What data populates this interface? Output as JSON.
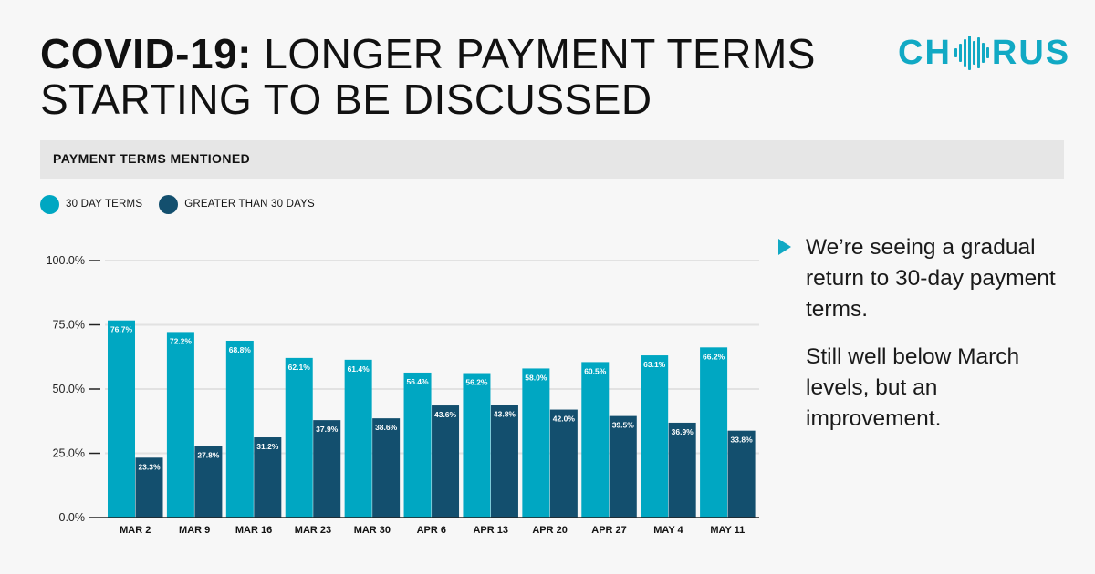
{
  "header": {
    "title_bold": "COVID-19:",
    "title_rest": " LONGER PAYMENT TERMS STARTING TO BE DISCUSSED"
  },
  "logo": {
    "text_left": "CH",
    "text_right": "RUS"
  },
  "section": {
    "label": "PAYMENT TERMS MENTIONED"
  },
  "legend": {
    "items": [
      {
        "label": "30 DAY TERMS",
        "color": "#00a7c2"
      },
      {
        "label": "GREATER THAN 30 DAYS",
        "color": "#134f6e"
      }
    ]
  },
  "notes": {
    "point_1": "We’re seeing a gradual return to 30-day payment terms.",
    "point_2": "Still well below March levels, but an improvement."
  },
  "chart_data": {
    "type": "bar",
    "title": "PAYMENT TERMS MENTIONED",
    "categories": [
      "MAR 2",
      "MAR 9",
      "MAR 16",
      "MAR 23",
      "MAR 30",
      "APR 6",
      "APR 13",
      "APR 20",
      "APR 27",
      "MAY 4",
      "MAY 11"
    ],
    "series": [
      {
        "name": "30 DAY TERMS",
        "color": "#00a7c2",
        "values": [
          76.7,
          72.2,
          68.8,
          62.1,
          61.4,
          56.4,
          56.2,
          58.0,
          60.5,
          63.1,
          66.2
        ]
      },
      {
        "name": "GREATER THAN 30 DAYS",
        "color": "#134f6e",
        "values": [
          23.3,
          27.8,
          31.2,
          37.9,
          38.6,
          43.6,
          43.8,
          42.0,
          39.5,
          36.9,
          33.8
        ]
      }
    ],
    "yticks": [
      "0.0%",
      "25.0%",
      "50.0%",
      "75.0%",
      "100.0%"
    ],
    "ylim": [
      0,
      100
    ],
    "grid": true,
    "legend_position": "top-left",
    "xlabel": "",
    "ylabel": ""
  }
}
